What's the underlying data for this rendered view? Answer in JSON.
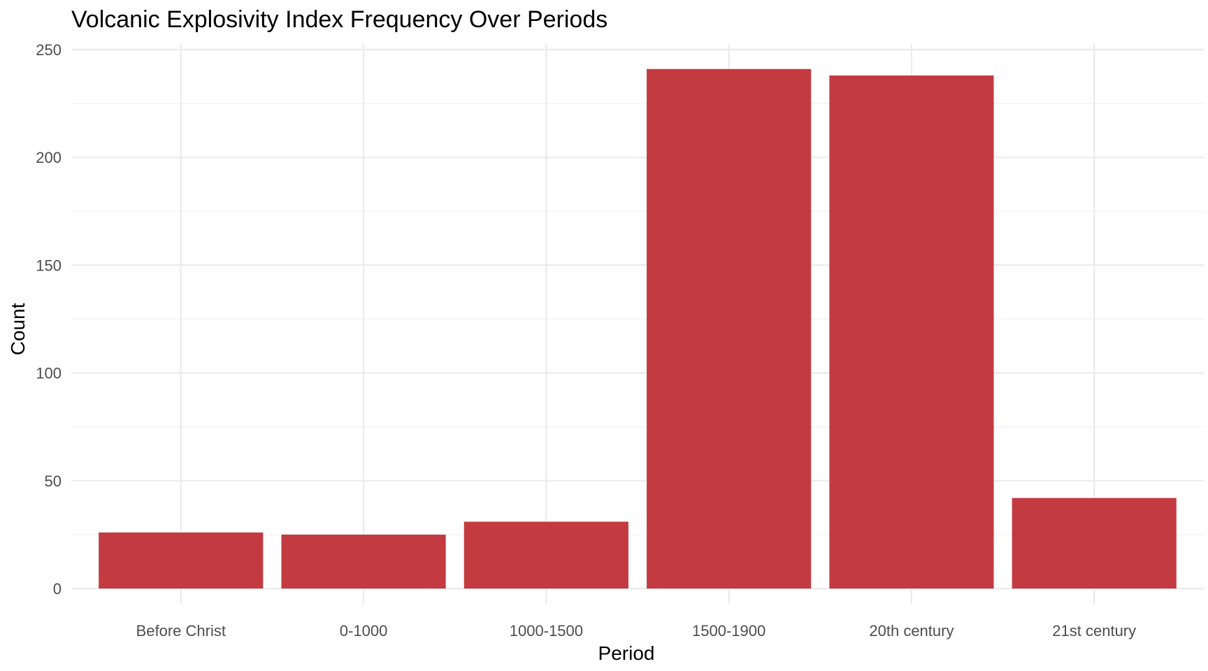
{
  "chart_data": {
    "type": "bar",
    "title": "Volcanic Explosivity Index Frequency Over Periods",
    "xlabel": "Period",
    "ylabel": "Count",
    "categories": [
      "Before Christ",
      "0-1000",
      "1000-1500",
      "1500-1900",
      "20th century",
      "21st century"
    ],
    "values": [
      26,
      25,
      31,
      241,
      238,
      42
    ],
    "ylim": [
      0,
      250
    ],
    "yticks": [
      0,
      50,
      100,
      150,
      200,
      250
    ],
    "grid": true,
    "legend": "none",
    "bar_color": "#c33a40",
    "grid_color": "#ebebeb"
  }
}
